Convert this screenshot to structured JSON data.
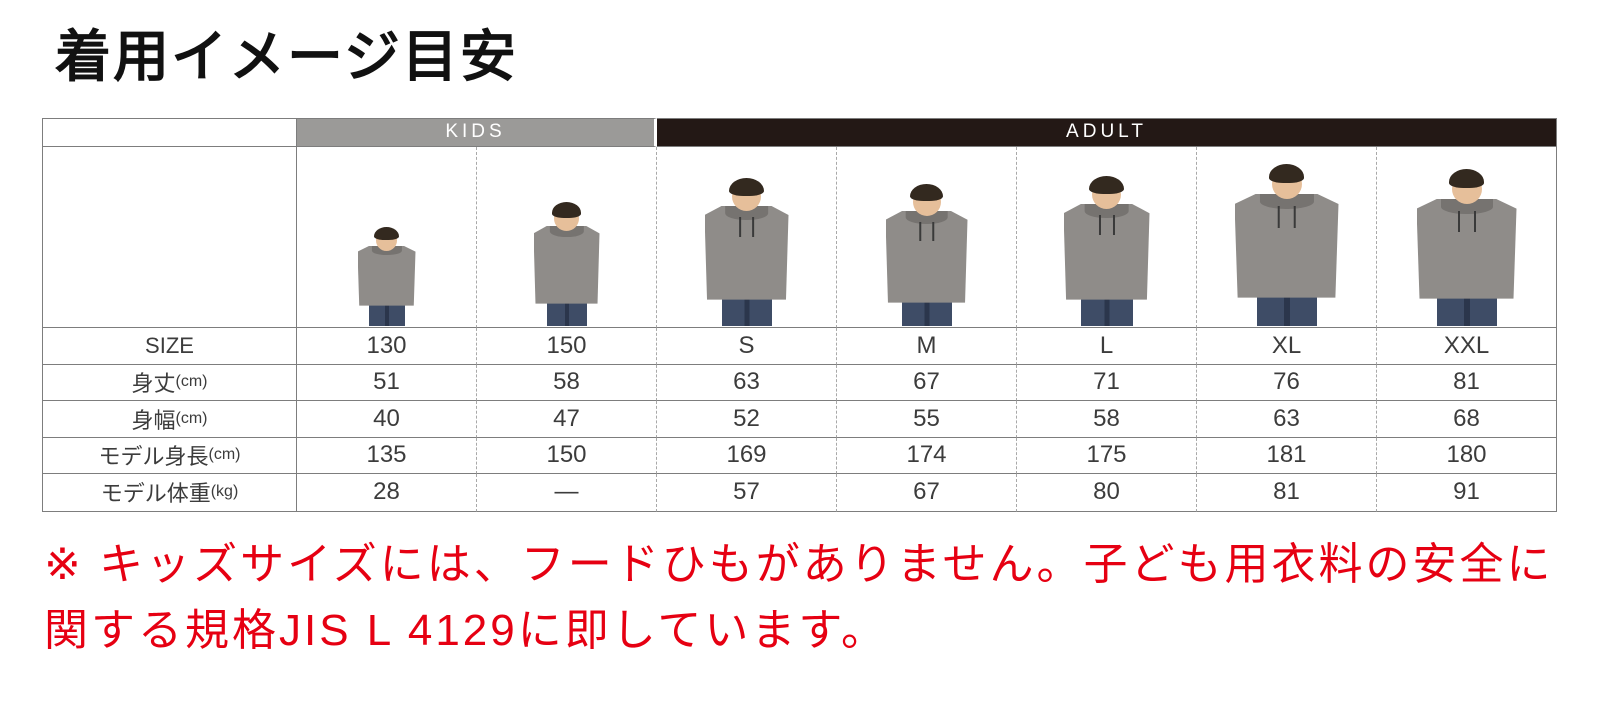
{
  "title": "着用イメージ目安",
  "table": {
    "groups": [
      {
        "label": "KIDS",
        "span": 2
      },
      {
        "label": "ADULT",
        "span": 5
      }
    ],
    "size_label": "SIZE",
    "sizes": [
      "130",
      "150",
      "S",
      "M",
      "L",
      "XL",
      "XXL"
    ],
    "rows": [
      {
        "label": "身丈",
        "unit": "(cm)",
        "values": [
          "51",
          "58",
          "63",
          "67",
          "71",
          "76",
          "81"
        ]
      },
      {
        "label": "身幅",
        "unit": "(cm)",
        "values": [
          "40",
          "47",
          "52",
          "55",
          "58",
          "63",
          "68"
        ]
      },
      {
        "label": "モデル身長",
        "unit": "(cm)",
        "values": [
          "135",
          "150",
          "169",
          "174",
          "175",
          "181",
          "180"
        ]
      },
      {
        "label": "モデル体重",
        "unit": "(kg)",
        "values": [
          "28",
          "—",
          "57",
          "67",
          "80",
          "81",
          "91"
        ]
      }
    ],
    "photos": [
      {
        "size": "130",
        "person": "child model wearing grey pullover hoodie"
      },
      {
        "size": "150",
        "person": "child model wearing grey pullover hoodie"
      },
      {
        "size": "S",
        "person": "adult model wearing grey pullover hoodie"
      },
      {
        "size": "M",
        "person": "adult model wearing grey pullover hoodie"
      },
      {
        "size": "L",
        "person": "adult model wearing grey pullover hoodie"
      },
      {
        "size": "XL",
        "person": "adult model wearing grey pullover hoodie"
      },
      {
        "size": "XXL",
        "person": "adult model wearing grey pullover hoodie"
      }
    ]
  },
  "note": "※ キッズサイズには、フードひもがありません。子ども用衣料の安全に関する規格JIS L 4129に即しています。",
  "colors": {
    "kids_header": "#9b9a98",
    "adult_header": "#231815",
    "note_red": "#e60012",
    "hoodie_grey": "#8f8c89"
  }
}
